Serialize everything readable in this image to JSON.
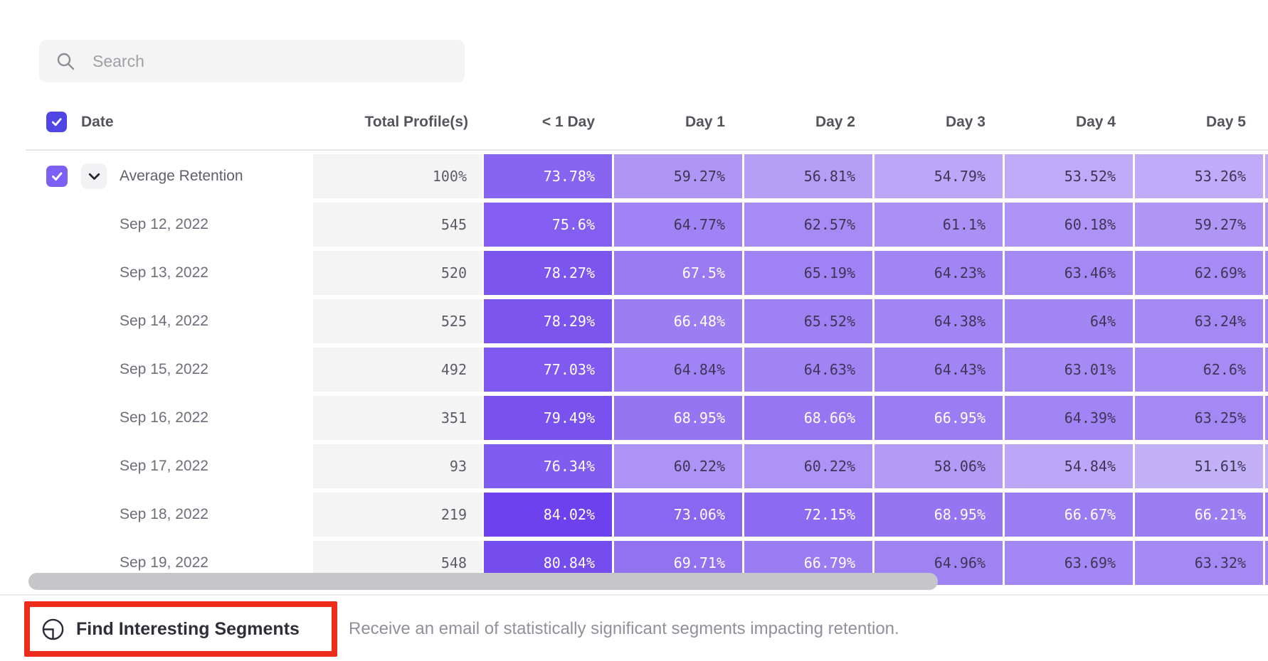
{
  "search": {
    "placeholder": "Search"
  },
  "table": {
    "header": {
      "date_label": "Date",
      "total_label": "Total Profile(s)",
      "day_columns": [
        "< 1 Day",
        "Day 1",
        "Day 2",
        "Day 3",
        "Day 4",
        "Day 5"
      ]
    },
    "rows": [
      {
        "label": "Average Retention",
        "average": true,
        "checked": true,
        "total": "100%",
        "cells": [
          "73.78%",
          "59.27%",
          "56.81%",
          "54.79%",
          "53.52%",
          "53.26%"
        ]
      },
      {
        "label": "Sep 12, 2022",
        "average": false,
        "total": "545",
        "cells": [
          "75.6%",
          "64.77%",
          "62.57%",
          "61.1%",
          "60.18%",
          "59.27%"
        ]
      },
      {
        "label": "Sep 13, 2022",
        "average": false,
        "total": "520",
        "cells": [
          "78.27%",
          "67.5%",
          "65.19%",
          "64.23%",
          "63.46%",
          "62.69%"
        ]
      },
      {
        "label": "Sep 14, 2022",
        "average": false,
        "total": "525",
        "cells": [
          "78.29%",
          "66.48%",
          "65.52%",
          "64.38%",
          "64%",
          "63.24%"
        ]
      },
      {
        "label": "Sep 15, 2022",
        "average": false,
        "total": "492",
        "cells": [
          "77.03%",
          "64.84%",
          "64.63%",
          "64.43%",
          "63.01%",
          "62.6%"
        ]
      },
      {
        "label": "Sep 16, 2022",
        "average": false,
        "total": "351",
        "cells": [
          "79.49%",
          "68.95%",
          "68.66%",
          "66.95%",
          "64.39%",
          "63.25%"
        ]
      },
      {
        "label": "Sep 17, 2022",
        "average": false,
        "total": "93",
        "cells": [
          "76.34%",
          "60.22%",
          "60.22%",
          "58.06%",
          "54.84%",
          "51.61%"
        ]
      },
      {
        "label": "Sep 18, 2022",
        "average": false,
        "total": "219",
        "cells": [
          "84.02%",
          "73.06%",
          "72.15%",
          "68.95%",
          "66.67%",
          "66.21%"
        ]
      },
      {
        "label": "Sep 19, 2022",
        "average": false,
        "total": "548",
        "cells": [
          "80.84%",
          "69.71%",
          "66.79%",
          "64.96%",
          "63.69%",
          "63.32%"
        ]
      }
    ]
  },
  "footer": {
    "button_label": "Find Interesting Segments",
    "description": "Receive an email of statistically significant segments impacting retention."
  },
  "colors": {
    "header_checkbox": "#4f46e5",
    "row_checkbox": "#7c5ef8",
    "heat_low": "#cdbdf9",
    "heat_high": "#6a3eed",
    "heat_min": 48,
    "heat_max": 85,
    "white_text_min": 66,
    "cell_dark_text": "#3e3656",
    "annotation_red": "#ee2c1c"
  }
}
